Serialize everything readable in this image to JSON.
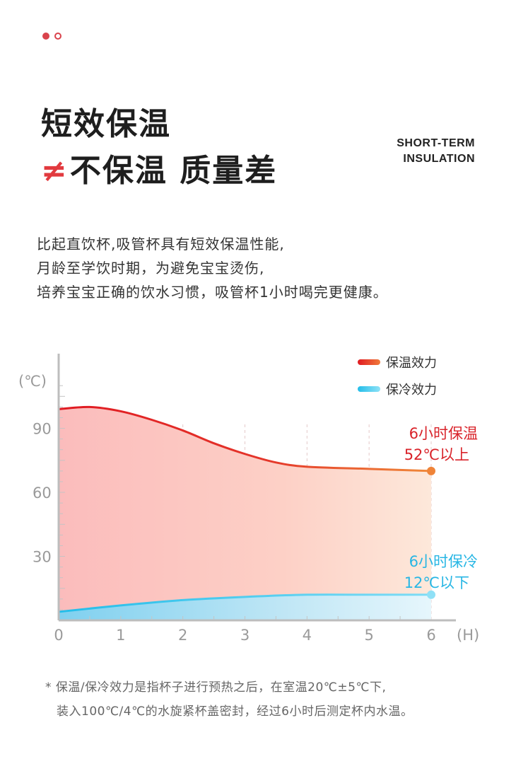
{
  "header": {
    "title_line1": "短效保温",
    "neq_symbol": "≠",
    "title_line2": "不保温 质量差",
    "en_line1": "SHORT-TERM",
    "en_line2": "INSULATION"
  },
  "description": [
    "比起直饮杯,吸管杯具有短效保温性能,",
    "月龄至学饮时期，为避免宝宝烫伤,",
    "培养宝宝正确的饮水习惯，吸管杯1小时喝完更健康。"
  ],
  "footnote": [
    "* 保温/保冷效力是指杯子进行预热之后，在室温20℃±5℃下,",
    "装入100℃/4℃的水旋紧杯盖密封，经过6小时后测定杯内水温。"
  ],
  "chart_data": {
    "type": "area",
    "ylabel": "(℃)",
    "xlabel": "(H)",
    "x": [
      0,
      1,
      2,
      3,
      4,
      5,
      6
    ],
    "ylim": [
      0,
      125
    ],
    "xlim": [
      0,
      6
    ],
    "yticks": [
      "30",
      "60",
      "90"
    ],
    "ytick_values": [
      30,
      60,
      90
    ],
    "xticks": [
      "0",
      "1",
      "2",
      "3",
      "4",
      "5",
      "6"
    ],
    "series": [
      {
        "name": "保温效力",
        "x": [
          0,
          0.5,
          1,
          1.5,
          2,
          2.5,
          3,
          3.5,
          4,
          5,
          6
        ],
        "values": [
          99,
          100,
          98,
          94,
          89,
          83,
          78,
          74,
          72,
          71,
          70
        ],
        "color": "#e01a22",
        "color_end": "#f08a3a"
      },
      {
        "name": "保冷效力",
        "x": [
          0,
          1,
          2,
          3,
          4,
          5,
          6
        ],
        "values": [
          4,
          7,
          9.5,
          11,
          12,
          12,
          12
        ],
        "color": "#23bde9",
        "color_end": "#7fdcf5"
      }
    ],
    "annotations": [
      {
        "line1": "6小时保温",
        "line2": "52℃以上",
        "color": "#d9232a"
      },
      {
        "line1": "6小时保冷",
        "line2": "12℃以下",
        "color": "#27b6e4"
      }
    ],
    "legend_position": "top-right",
    "grid": true
  }
}
